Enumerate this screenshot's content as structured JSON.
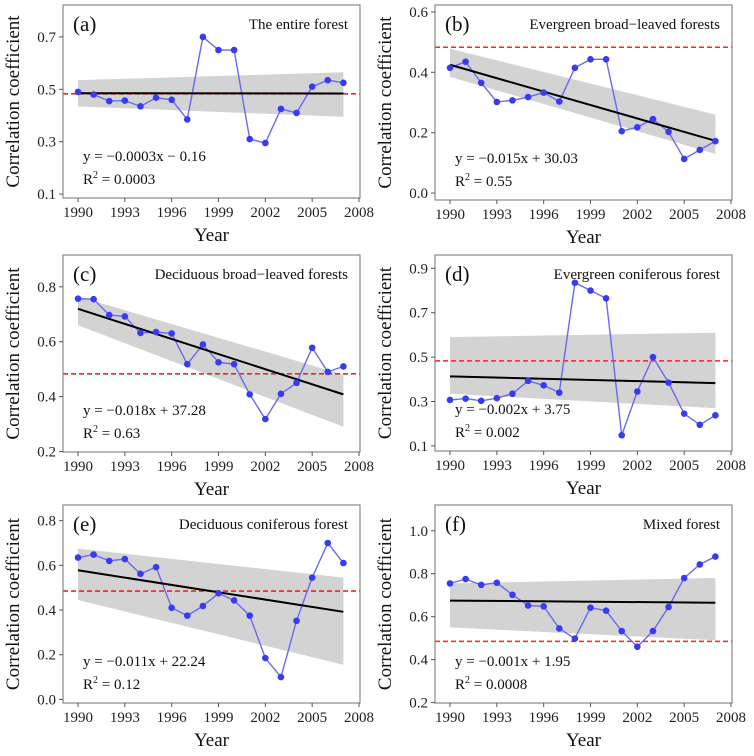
{
  "chart_data": [
    {
      "type": "line",
      "panel": "(a)",
      "title": "The entire forest",
      "xlabel": "Year",
      "ylabel": "Correlation coefficient",
      "x": [
        1990,
        1991,
        1992,
        1993,
        1994,
        1995,
        1996,
        1997,
        1998,
        1999,
        2000,
        2001,
        2002,
        2003,
        2004,
        2005,
        2006,
        2007
      ],
      "values": [
        0.49,
        0.48,
        0.455,
        0.457,
        0.435,
        0.468,
        0.46,
        0.385,
        0.7,
        0.65,
        0.65,
        0.31,
        0.295,
        0.425,
        0.41,
        0.51,
        0.535,
        0.525
      ],
      "trend": [
        0.485,
        0.484
      ],
      "ci_start": [
        0.435,
        0.535
      ],
      "ci_end": [
        0.395,
        0.565
      ],
      "threshold": 0.483,
      "equation": "y = −0.0003x − 0.16",
      "r2_label": "R",
      "r2_sup": "2",
      "r2_value": " = 0.0003",
      "xticks": [
        "1990",
        "1993",
        "1996",
        "1999",
        "2002",
        "2005",
        "2008"
      ],
      "yticks": [
        "0.1",
        "0.3",
        "0.5",
        "0.7"
      ],
      "ylim": [
        0.085,
        0.822
      ],
      "xlim": [
        1989.2,
        2008
      ]
    },
    {
      "type": "line",
      "panel": "(b)",
      "title": "Evergreen broad−leaved forests",
      "xlabel": "Year",
      "ylabel": "Correlation coefficient",
      "x": [
        1990,
        1991,
        1992,
        1993,
        1994,
        1995,
        1996,
        1997,
        1998,
        1999,
        2000,
        2001,
        2002,
        2003,
        2004,
        2005,
        2006,
        2007
      ],
      "values": [
        0.415,
        0.435,
        0.365,
        0.302,
        0.307,
        0.318,
        0.333,
        0.303,
        0.415,
        0.443,
        0.443,
        0.205,
        0.218,
        0.245,
        0.203,
        0.113,
        0.143,
        0.172
      ],
      "trend": [
        0.425,
        0.173
      ],
      "ci_start": [
        0.385,
        0.478
      ],
      "ci_end": [
        0.13,
        0.26
      ],
      "threshold": 0.483,
      "equation": "y = −0.015x + 30.03",
      "r2_label": "R",
      "r2_sup": "2",
      "r2_value": " = 0.55",
      "xticks": [
        "1990",
        "1993",
        "1996",
        "1999",
        "2002",
        "2005",
        "2008"
      ],
      "yticks": [
        "0.0",
        "0.2",
        "0.4",
        "0.6"
      ],
      "ylim": [
        -0.023,
        0.623
      ],
      "xlim": [
        1989.2,
        2008
      ]
    },
    {
      "type": "line",
      "panel": "(c)",
      "title": "Deciduous broad−leaved forests",
      "xlabel": "Year",
      "ylabel": "Correlation coefficient",
      "x": [
        1990,
        1991,
        1992,
        1993,
        1994,
        1995,
        1996,
        1997,
        1998,
        1999,
        2000,
        2001,
        2002,
        2003,
        2004,
        2005,
        2006,
        2007
      ],
      "values": [
        0.757,
        0.755,
        0.697,
        0.692,
        0.632,
        0.635,
        0.63,
        0.518,
        0.59,
        0.525,
        0.518,
        0.408,
        0.318,
        0.41,
        0.45,
        0.578,
        0.49,
        0.51
      ],
      "trend": [
        0.72,
        0.408
      ],
      "ci_start": [
        0.66,
        0.765
      ],
      "ci_end": [
        0.29,
        0.48
      ],
      "threshold": 0.483,
      "equation": "y = −0.018x + 37.28",
      "r2_label": "R",
      "r2_sup": "2",
      "r2_value": " = 0.63",
      "xticks": [
        "1990",
        "1993",
        "1996",
        "1999",
        "2002",
        "2005",
        "2008"
      ],
      "yticks": [
        "0.2",
        "0.4",
        "0.6",
        "0.8"
      ],
      "ylim": [
        0.198,
        0.916
      ],
      "xlim": [
        1989.2,
        2008
      ]
    },
    {
      "type": "line",
      "panel": "(d)",
      "title": "Evergreen coniferous forest",
      "xlabel": "Year",
      "ylabel": "Correlation coefficient",
      "x": [
        1990,
        1991,
        1992,
        1993,
        1994,
        1995,
        1996,
        1997,
        1998,
        1999,
        2000,
        2001,
        2002,
        2003,
        2004,
        2005,
        2006,
        2007
      ],
      "values": [
        0.307,
        0.313,
        0.303,
        0.315,
        0.335,
        0.393,
        0.373,
        0.34,
        0.835,
        0.8,
        0.765,
        0.148,
        0.345,
        0.5,
        0.385,
        0.245,
        0.195,
        0.238
      ],
      "trend": [
        0.413,
        0.383
      ],
      "ci_start": [
        0.335,
        0.59
      ],
      "ci_end": [
        0.27,
        0.61
      ],
      "threshold": 0.483,
      "equation": "y = −0.002x + 3.75",
      "r2_label": "R",
      "r2_sup": "2",
      "r2_value": " = 0.002",
      "xticks": [
        "1990",
        "1993",
        "1996",
        "1999",
        "2002",
        "2005",
        "2008"
      ],
      "yticks": [
        "0.1",
        "0.3",
        "0.5",
        "0.7",
        "0.9"
      ],
      "ylim": [
        0.077,
        0.96
      ],
      "xlim": [
        1989.2,
        2008
      ]
    },
    {
      "type": "line",
      "panel": "(e)",
      "title": "Deciduous coniferous forest",
      "xlabel": "Year",
      "ylabel": "Correlation coefficient",
      "x": [
        1990,
        1991,
        1992,
        1993,
        1994,
        1995,
        1996,
        1997,
        1998,
        1999,
        2000,
        2001,
        2002,
        2003,
        2004,
        2005,
        2006,
        2007
      ],
      "values": [
        0.635,
        0.648,
        0.62,
        0.628,
        0.562,
        0.592,
        0.41,
        0.375,
        0.418,
        0.475,
        0.443,
        0.375,
        0.185,
        0.1,
        0.352,
        0.545,
        0.7,
        0.61
      ],
      "trend": [
        0.578,
        0.392
      ],
      "ci_start": [
        0.445,
        0.675
      ],
      "ci_end": [
        0.155,
        0.545
      ],
      "threshold": 0.485,
      "equation": "y = −0.011x + 22.24",
      "r2_label": "R",
      "r2_sup": "2",
      "r2_value": " = 0.12",
      "xticks": [
        "1990",
        "1993",
        "1996",
        "1999",
        "2002",
        "2005",
        "2008"
      ],
      "yticks": [
        "0.0",
        "0.2",
        "0.4",
        "0.6",
        "0.8"
      ],
      "ylim": [
        -0.016,
        0.87
      ],
      "xlim": [
        1989.2,
        2008
      ]
    },
    {
      "type": "line",
      "panel": "(f)",
      "title": "Mixed forest",
      "xlabel": "Year",
      "ylabel": "Correlation coefficient",
      "x": [
        1990,
        1991,
        1992,
        1993,
        1994,
        1995,
        1996,
        1997,
        1998,
        1999,
        2000,
        2001,
        2002,
        2003,
        2004,
        2005,
        2006,
        2007
      ],
      "values": [
        0.755,
        0.775,
        0.748,
        0.758,
        0.702,
        0.652,
        0.648,
        0.545,
        0.498,
        0.642,
        0.628,
        0.533,
        0.46,
        0.533,
        0.645,
        0.78,
        0.843,
        0.88
      ],
      "trend": [
        0.675,
        0.665
      ],
      "ci_start": [
        0.55,
        0.755
      ],
      "ci_end": [
        0.49,
        0.78
      ],
      "threshold": 0.485,
      "equation": "y = −0.001x + 1.95",
      "r2_label": "R",
      "r2_sup": "2",
      "r2_value": " = 0.0008",
      "xticks": [
        "1990",
        "1993",
        "1996",
        "1999",
        "2002",
        "2005",
        "2008"
      ],
      "yticks": [
        "0.2",
        "0.4",
        "0.6",
        "0.8",
        "1.0"
      ],
      "ylim": [
        0.198,
        1.12
      ],
      "xlim": [
        1989.2,
        2008
      ]
    }
  ],
  "colors": {
    "series": "#3a3af5",
    "series_line": "#6a6af0",
    "trend": "#000000",
    "ci": "#d3d3d3",
    "threshold": "#ff2020"
  }
}
